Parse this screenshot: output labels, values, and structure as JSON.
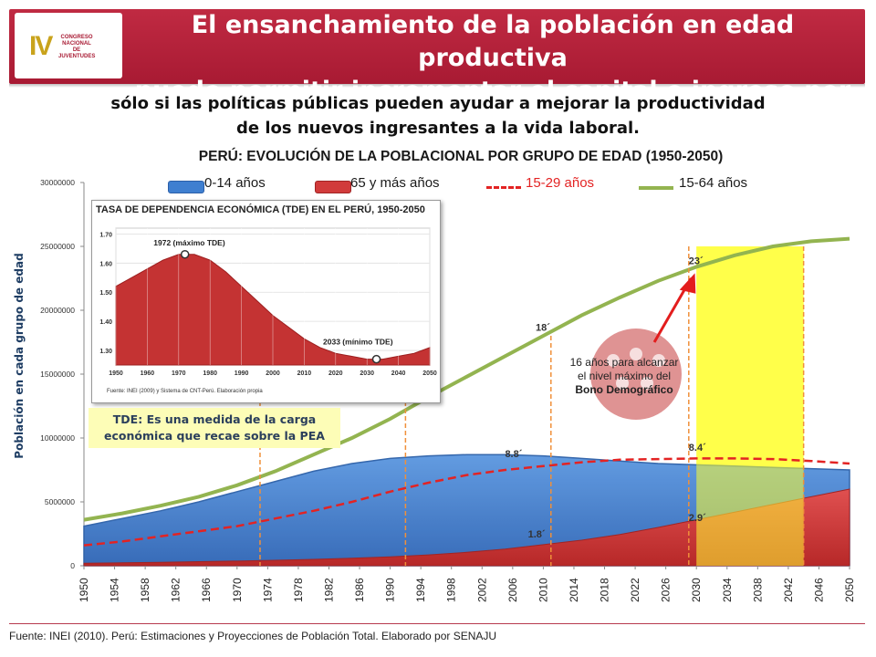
{
  "header": {
    "title_line1": "El  ensanchamiento de la población en edad productiva",
    "title_line2": "puede permitir incrementar el capital e ingreso per cápita",
    "logo_iv": "IV",
    "logo_text": "CONGRESO NACIONAL DE JUVENTUDES"
  },
  "subtitle": {
    "line1": "sólo si las políticas públicas pueden ayudar a mejorar la productividad",
    "line2": "de los nuevos ingresantes a la vida laboral."
  },
  "chart_data": {
    "type": "area",
    "title_bold": "PERÚ: EVOLUCIÓN DE LA POBLACIONAL POR GRUPO DE EDAD",
    "title_years": "(1950-2050)",
    "ylabel": "Población en cada grupo de edad",
    "ylim": [
      0,
      30000000
    ],
    "yticks": [
      "0",
      "5000000",
      "10000000",
      "15000000",
      "20000000",
      "25000000",
      "30000000"
    ],
    "xlim": [
      1950,
      2050
    ],
    "xticks": [
      "1950",
      "1954",
      "1958",
      "1962",
      "1966",
      "1970",
      "1974",
      "1978",
      "1982",
      "1986",
      "1990",
      "1994",
      "1998",
      "2002",
      "2006",
      "2010",
      "2014",
      "2018",
      "2022",
      "2026",
      "2030",
      "2034",
      "2038",
      "2042",
      "2046",
      "2050"
    ],
    "series": [
      {
        "name": "0-14 años",
        "kind": "area",
        "color": "#3f7fd0",
        "x": [
          1950,
          1955,
          1960,
          1965,
          1970,
          1975,
          1980,
          1985,
          1990,
          1995,
          2000,
          2005,
          2010,
          2015,
          2020,
          2025,
          2030,
          2035,
          2040,
          2045,
          2050
        ],
        "values": [
          3100000,
          3700000,
          4300000,
          5000000,
          5800000,
          6600000,
          7400000,
          8000000,
          8400000,
          8600000,
          8700000,
          8700000,
          8600000,
          8400000,
          8200000,
          8000000,
          7900000,
          7800000,
          7700000,
          7600000,
          7500000
        ]
      },
      {
        "name": "65 y más años",
        "kind": "area",
        "color": "#d13b3b",
        "x": [
          1950,
          1955,
          1960,
          1965,
          1970,
          1975,
          1980,
          1985,
          1990,
          1995,
          2000,
          2005,
          2010,
          2015,
          2020,
          2025,
          2030,
          2035,
          2040,
          2045,
          2050
        ],
        "values": [
          200000,
          230000,
          270000,
          320000,
          370000,
          430000,
          500000,
          590000,
          700000,
          850000,
          1050000,
          1300000,
          1650000,
          2000000,
          2450000,
          3000000,
          3600000,
          4200000,
          4800000,
          5400000,
          6000000
        ]
      },
      {
        "name": "15-29 años",
        "kind": "dashed-line",
        "color": "#e32323",
        "x": [
          1950,
          1955,
          1960,
          1965,
          1970,
          1975,
          1980,
          1985,
          1990,
          1995,
          2000,
          2005,
          2010,
          2015,
          2020,
          2025,
          2030,
          2035,
          2040,
          2045,
          2050
        ],
        "values": [
          1600000,
          1900000,
          2300000,
          2700000,
          3100000,
          3700000,
          4300000,
          5000000,
          5800000,
          6500000,
          7100000,
          7500000,
          7800000,
          8100000,
          8300000,
          8350000,
          8400000,
          8400000,
          8350000,
          8200000,
          8000000
        ]
      },
      {
        "name": "15-64 años",
        "kind": "line",
        "color": "#93b450",
        "x": [
          1950,
          1955,
          1960,
          1965,
          1970,
          1975,
          1980,
          1985,
          1990,
          1995,
          2000,
          2005,
          2010,
          2015,
          2020,
          2025,
          2030,
          2035,
          2040,
          2045,
          2050
        ],
        "values": [
          3600000,
          4100000,
          4700000,
          5400000,
          6300000,
          7400000,
          8700000,
          10000000,
          11500000,
          13200000,
          14800000,
          16400000,
          18000000,
          19600000,
          21000000,
          22300000,
          23400000,
          24300000,
          25000000,
          25400000,
          25600000
        ]
      }
    ],
    "annotations": {
      "label_18": "18´",
      "label_23": "23´",
      "label_88": "8.8´",
      "label_84": "8.4´",
      "label_18b": "1.8´",
      "label_29": "2.9´",
      "bono_text_1": "16 años para alcanzar",
      "bono_text_2": "el nivel máximo del",
      "bono_text_3": "Bono Demográfico",
      "highlight_from": 2030,
      "highlight_to": 2044,
      "highlight_color": "#ffff33",
      "vertical_markers": [
        1973,
        1992,
        2011,
        2029,
        2044
      ]
    }
  },
  "inset_chart": {
    "title": "TASA DE DEPENDENCIA ECONÓMICA (TDE) EN EL PERÚ, 1950-2050",
    "peak_label": "1972 (máximo TDE)",
    "min_label": "2033 (mínimo TDE)",
    "yticks": [
      "1.70",
      "1.60",
      "1.50",
      "1.40",
      "1.30"
    ],
    "xticks": [
      "1950",
      "1960",
      "1970",
      "1980",
      "1990",
      "2000",
      "2010",
      "2020",
      "2030",
      "2040",
      "2050"
    ],
    "ylim": [
      1.25,
      1.72
    ],
    "x": [
      1950,
      1955,
      1960,
      1965,
      1970,
      1975,
      1980,
      1985,
      1990,
      1995,
      2000,
      2005,
      2010,
      2015,
      2020,
      2025,
      2030,
      2035,
      2040,
      2045,
      2050
    ],
    "values": [
      1.52,
      1.55,
      1.58,
      1.61,
      1.63,
      1.63,
      1.61,
      1.57,
      1.52,
      1.47,
      1.42,
      1.38,
      1.34,
      1.31,
      1.29,
      1.28,
      1.27,
      1.27,
      1.28,
      1.29,
      1.31
    ],
    "source": "Fuente: INEI (2009) y Sistema de CNT-Perú. Elaboración propia"
  },
  "note": {
    "line1": "TDE: Es una medida de la carga",
    "line2": "económica que recae sobre la PEA"
  },
  "footer": {
    "source": "Fuente: INEI (2010). Perú: Estimaciones y Proyecciones de Población Total. Elaborado por SENAJU"
  }
}
